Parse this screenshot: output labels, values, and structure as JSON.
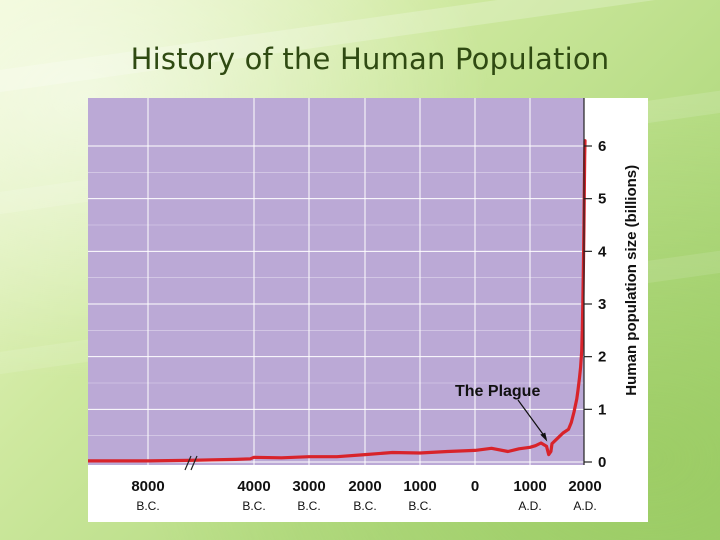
{
  "slide": {
    "title": "History of the Human Population"
  },
  "colors": {
    "plot_background": "#bba9d6",
    "grid": "#ffffff",
    "line": "#d8232a",
    "text": "#111111"
  },
  "chart_data": {
    "type": "line",
    "title": "",
    "xlabel": "",
    "ylabel": "Human population size (billions)",
    "ylim": [
      0,
      6.6
    ],
    "grid": true,
    "axis_break": "between 8000 B.C. and 4000 B.C.",
    "x_ticks": [
      {
        "value": -8000,
        "label": "8000",
        "era": "B.C."
      },
      {
        "value": -4000,
        "label": "4000",
        "era": "B.C."
      },
      {
        "value": -3000,
        "label": "3000",
        "era": "B.C."
      },
      {
        "value": -2000,
        "label": "2000",
        "era": "B.C."
      },
      {
        "value": -1000,
        "label": "1000",
        "era": "B.C."
      },
      {
        "value": 0,
        "label": "0",
        "era": ""
      },
      {
        "value": 1000,
        "label": "1000",
        "era": "A.D."
      },
      {
        "value": 2000,
        "label": "2000",
        "era": "A.D."
      }
    ],
    "y_ticks": [
      0,
      1,
      2,
      3,
      4,
      5,
      6
    ],
    "annotation": {
      "text": "The Plague",
      "x": 1350,
      "y": 0.33
    },
    "series": [
      {
        "x": [
          -9500,
          -8000,
          -7600,
          -5000,
          -4200,
          -4000,
          -3500,
          -3000,
          -2500,
          -2000,
          -1500,
          -1000,
          -500,
          0,
          300,
          600,
          800,
          1000,
          1100,
          1200,
          1300,
          1340,
          1380,
          1400,
          1500,
          1600,
          1700,
          1750,
          1800,
          1850,
          1870,
          1900,
          1920,
          1940,
          1950,
          1960,
          1970,
          1980,
          1990,
          1995,
          2000
        ],
        "y": [
          0.02,
          0.02,
          0.03,
          0.05,
          0.06,
          0.09,
          0.08,
          0.1,
          0.1,
          0.14,
          0.18,
          0.17,
          0.2,
          0.22,
          0.26,
          0.2,
          0.25,
          0.28,
          0.31,
          0.36,
          0.3,
          0.14,
          0.2,
          0.35,
          0.45,
          0.55,
          0.62,
          0.75,
          0.95,
          1.2,
          1.35,
          1.6,
          1.8,
          2.1,
          2.5,
          3.0,
          3.7,
          4.4,
          5.3,
          5.8,
          6.1
        ]
      }
    ]
  }
}
